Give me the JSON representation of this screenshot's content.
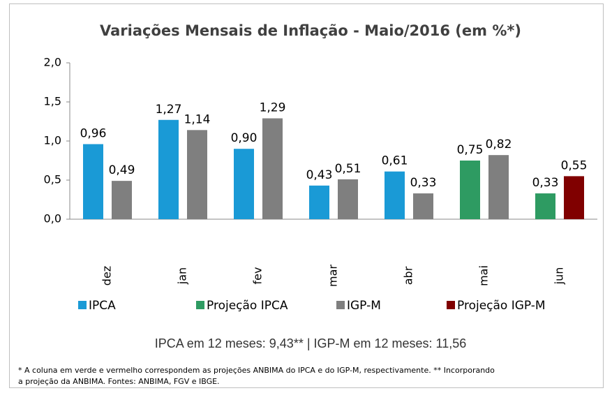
{
  "chart_data": {
    "type": "bar",
    "title": "Variações Mensais de Inflação - Maio/2016 (em %*)",
    "categories": [
      "dez",
      "jan",
      "fev",
      "mar",
      "abr",
      "mai",
      "jun"
    ],
    "series": [
      {
        "name": "IPCA",
        "color": "#1a9ad6",
        "values": [
          0.96,
          1.27,
          0.9,
          0.43,
          0.61,
          null,
          null
        ],
        "value_labels": [
          "0,96",
          "1,27",
          "0,90",
          "0,43",
          "0,61",
          null,
          null
        ]
      },
      {
        "name": "Projeção IPCA",
        "color": "#2e9b62",
        "values": [
          null,
          null,
          null,
          null,
          null,
          0.75,
          0.33
        ],
        "value_labels": [
          null,
          null,
          null,
          null,
          null,
          "0,75",
          "0,33"
        ]
      },
      {
        "name": "IGP-M",
        "color": "#7f7f7f",
        "values": [
          0.49,
          1.14,
          1.29,
          0.51,
          0.33,
          0.82,
          null
        ],
        "value_labels": [
          "0,49",
          "1,14",
          "1,29",
          "0,51",
          "0,33",
          "0,82",
          null
        ]
      },
      {
        "name": "Projeção IGP-M",
        "color": "#800000",
        "values": [
          null,
          null,
          null,
          null,
          null,
          null,
          0.55
        ],
        "value_labels": [
          null,
          null,
          null,
          null,
          null,
          null,
          "0,55"
        ]
      }
    ],
    "ylim": [
      0,
      2
    ],
    "yticks": [
      {
        "value": 0,
        "label": "0,0"
      },
      {
        "value": 0.5,
        "label": "0,5"
      },
      {
        "value": 1,
        "label": "1,0"
      },
      {
        "value": 1.5,
        "label": "1,5"
      },
      {
        "value": 2,
        "label": "2,0"
      }
    ],
    "grid": false,
    "legend": "bottom",
    "summary": "IPCA em 12 meses: 9,43** | IGP-M em 12 meses: 11,56",
    "footnote": [
      "* A coluna em verde e vermelho correspondem as projeções ANBIMA do IPCA e do IGP-M, respectivamente. ** Incorporando",
      "a projeção da ANBIMA. Fontes: ANBIMA, FGV e IBGE."
    ]
  }
}
